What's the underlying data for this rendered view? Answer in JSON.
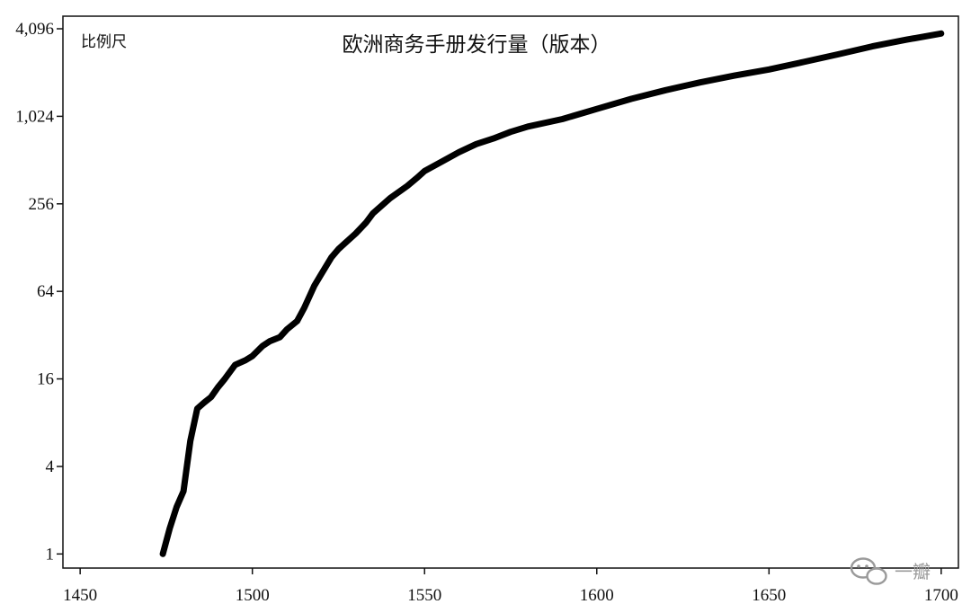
{
  "chart_data": {
    "type": "line",
    "title": "欧洲商务手册发行量（版本）",
    "scale_label": "比例尺",
    "y_scale": "log2",
    "xlim": [
      1445,
      1705
    ],
    "ylim": [
      0.8,
      5000
    ],
    "x_ticks": [
      {
        "value": 1450,
        "label": "1450"
      },
      {
        "value": 1500,
        "label": "1500"
      },
      {
        "value": 1550,
        "label": "1550"
      },
      {
        "value": 1600,
        "label": "1600"
      },
      {
        "value": 1650,
        "label": "1650"
      },
      {
        "value": 1700,
        "label": "1700"
      }
    ],
    "y_ticks": [
      {
        "value": 1,
        "label": "1"
      },
      {
        "value": 4,
        "label": "4"
      },
      {
        "value": 16,
        "label": "16"
      },
      {
        "value": 64,
        "label": "64"
      },
      {
        "value": 256,
        "label": "256"
      },
      {
        "value": 1024,
        "label": "1,024"
      },
      {
        "value": 4096,
        "label": "4,096"
      }
    ],
    "series": [
      {
        "x": [
          1474,
          1476,
          1478,
          1480,
          1482,
          1484,
          1486,
          1488,
          1490,
          1492,
          1495,
          1498,
          1500,
          1503,
          1505,
          1508,
          1510,
          1513,
          1515,
          1518,
          1520,
          1523,
          1525,
          1528,
          1530,
          1533,
          1535,
          1540,
          1545,
          1548,
          1550,
          1555,
          1560,
          1565,
          1570,
          1575,
          1580,
          1590,
          1600,
          1610,
          1620,
          1630,
          1640,
          1650,
          1660,
          1670,
          1680,
          1690,
          1700
        ],
        "y": [
          1,
          1.5,
          2.1,
          2.7,
          6,
          10,
          11,
          12,
          14,
          16,
          20,
          21.5,
          23,
          27,
          29,
          31,
          35,
          40,
          49,
          70,
          84,
          110,
          125,
          145,
          160,
          190,
          220,
          280,
          340,
          390,
          430,
          500,
          580,
          660,
          720,
          800,
          870,
          980,
          1150,
          1350,
          1550,
          1750,
          1950,
          2150,
          2420,
          2730,
          3100,
          3450,
          3800
        ]
      }
    ],
    "watermark": "一瓣"
  }
}
